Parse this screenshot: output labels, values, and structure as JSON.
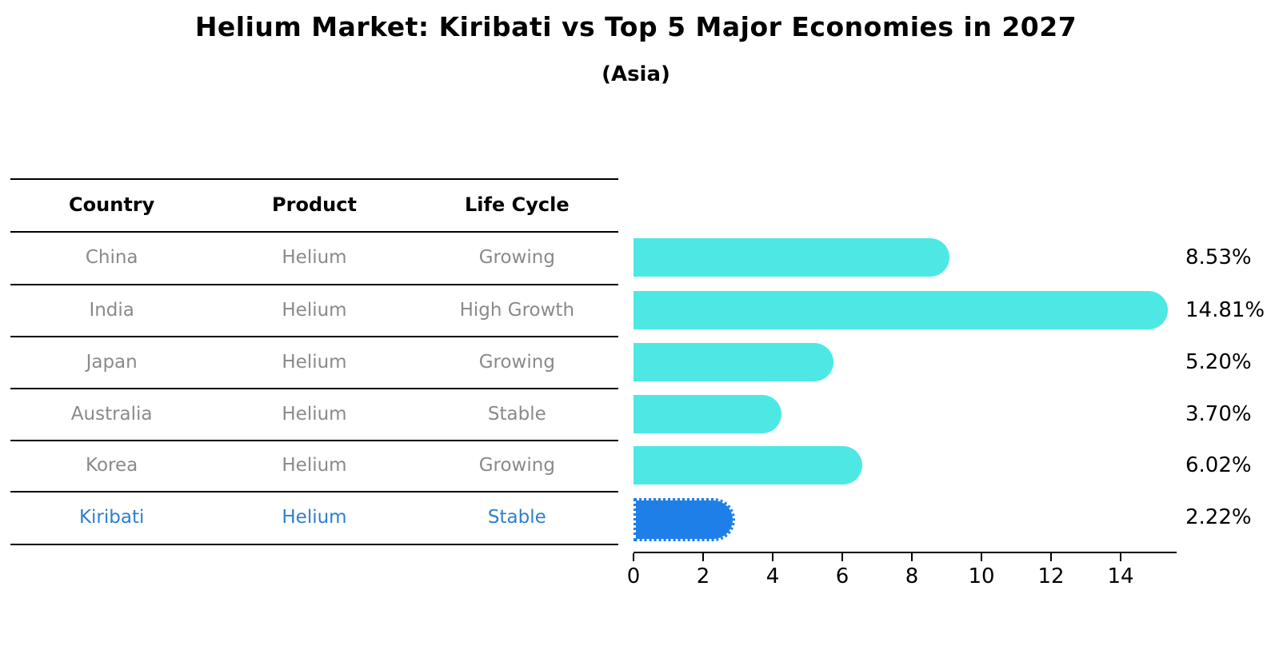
{
  "title": "Helium Market: Kiribati vs Top 5 Major Economies in 2027",
  "subtitle": "(Asia)",
  "table": {
    "headers": [
      "Country",
      "Product",
      "Life Cycle"
    ],
    "rows": [
      {
        "country": "China",
        "product": "Helium",
        "life_cycle": "Growing",
        "highlight": false
      },
      {
        "country": "India",
        "product": "Helium",
        "life_cycle": "High Growth",
        "highlight": false
      },
      {
        "country": "Japan",
        "product": "Helium",
        "life_cycle": "Growing",
        "highlight": false
      },
      {
        "country": "Australia",
        "product": "Helium",
        "life_cycle": "Stable",
        "highlight": false
      },
      {
        "country": "Korea",
        "product": "Helium",
        "life_cycle": "Growing",
        "highlight": false
      },
      {
        "country": "Kiribati",
        "product": "Helium",
        "life_cycle": "Stable",
        "highlight": true
      }
    ]
  },
  "chart_data": {
    "type": "bar",
    "orientation": "horizontal",
    "title": "Helium Market: Kiribati vs Top 5 Major Economies in 2027",
    "subtitle": "(Asia)",
    "categories": [
      "China",
      "India",
      "Japan",
      "Australia",
      "Korea",
      "Kiribati"
    ],
    "values": [
      8.53,
      14.81,
      5.2,
      3.7,
      6.02,
      2.22
    ],
    "value_labels": [
      "8.53%",
      "14.81%",
      "5.20%",
      "3.70%",
      "6.02%",
      "2.22%"
    ],
    "highlight_index": 5,
    "xlim": [
      0,
      15.6
    ],
    "x_ticks": [
      0,
      2,
      4,
      6,
      8,
      10,
      12,
      14
    ],
    "grid": false,
    "legend": false
  },
  "colors": {
    "bar": "#4DE8E4",
    "highlight_bar": "#1E7FE8",
    "highlight_text": "#2E7FD0",
    "cell_text": "#8a8a8a",
    "header_text": "#000000",
    "axis": "#000000"
  }
}
